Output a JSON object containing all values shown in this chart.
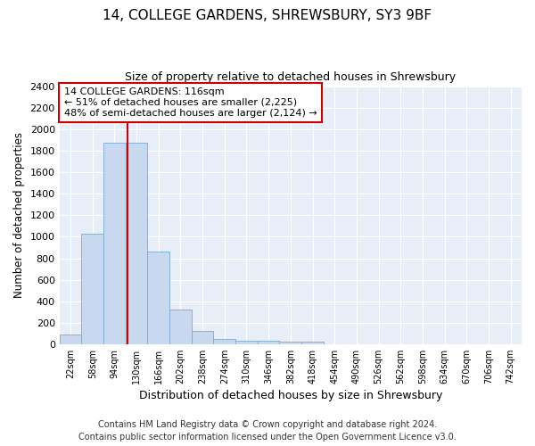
{
  "title_line1": "14, COLLEGE GARDENS, SHREWSBURY, SY3 9BF",
  "title_line2": "Size of property relative to detached houses in Shrewsbury",
  "xlabel": "Distribution of detached houses by size in Shrewsbury",
  "ylabel": "Number of detached properties",
  "footer_line1": "Contains HM Land Registry data © Crown copyright and database right 2024.",
  "footer_line2": "Contains public sector information licensed under the Open Government Licence v3.0.",
  "bar_labels": [
    "22sqm",
    "58sqm",
    "94sqm",
    "130sqm",
    "166sqm",
    "202sqm",
    "238sqm",
    "274sqm",
    "310sqm",
    "346sqm",
    "382sqm",
    "418sqm",
    "454sqm",
    "490sqm",
    "526sqm",
    "562sqm",
    "598sqm",
    "634sqm",
    "670sqm",
    "706sqm",
    "742sqm"
  ],
  "bar_values": [
    90,
    1025,
    1880,
    1880,
    860,
    320,
    120,
    50,
    35,
    30,
    25,
    20,
    0,
    0,
    0,
    0,
    0,
    0,
    0,
    0,
    0
  ],
  "bar_color": "#c8d8ee",
  "bar_edge_color": "#7aaad0",
  "annotation_line1": "14 COLLEGE GARDENS: 116sqm",
  "annotation_line2": "← 51% of detached houses are smaller (2,225)",
  "annotation_line3": "48% of semi-detached houses are larger (2,124) →",
  "annotation_box_color": "#ffffff",
  "annotation_box_edge": "#cc0000",
  "red_line_x": 2.75,
  "ylim": [
    0,
    2400
  ],
  "yticks": [
    0,
    200,
    400,
    600,
    800,
    1000,
    1200,
    1400,
    1600,
    1800,
    2000,
    2200,
    2400
  ],
  "background_color": "#e8eef8",
  "grid_color": "#ffffff",
  "title_fontsize": 11,
  "subtitle_fontsize": 9,
  "footer_fontsize": 7
}
